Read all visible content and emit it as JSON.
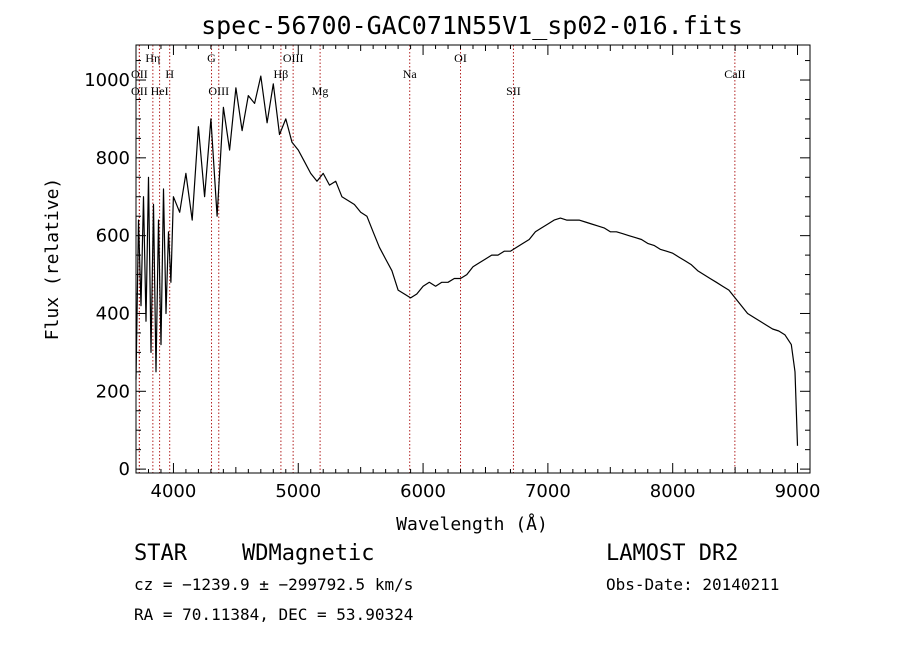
{
  "chart_data": {
    "type": "line",
    "title": "spec-56700-GAC071N55V1_sp02-016.fits",
    "xlabel": "Wavelength (Å)",
    "ylabel": "Flux (relative)",
    "xlim": [
      3700,
      9100
    ],
    "ylim": [
      -10,
      1090
    ],
    "x_ticks": [
      4000,
      5000,
      6000,
      7000,
      8000,
      9000
    ],
    "y_ticks": [
      0,
      200,
      400,
      600,
      800,
      1000
    ],
    "grid": false,
    "line_color": "#000000",
    "marker_color": "#b22222",
    "spectral_lines": [
      {
        "label": "OII",
        "wavelength": 3727,
        "tier": "upper"
      },
      {
        "label": "Hη",
        "wavelength": 3835,
        "tier": "top"
      },
      {
        "label": "OII",
        "wavelength": 3727,
        "tier": "mid"
      },
      {
        "label": "HeI",
        "wavelength": 3889,
        "tier": "mid"
      },
      {
        "label": "H",
        "wavelength": 3970,
        "tier": "upper"
      },
      {
        "label": "G",
        "wavelength": 4305,
        "tier": "top"
      },
      {
        "label": "OIII",
        "wavelength": 4363,
        "tier": "mid"
      },
      {
        "label": "Hβ",
        "wavelength": 4861,
        "tier": "upper"
      },
      {
        "label": "OIII",
        "wavelength": 4959,
        "tier": "top"
      },
      {
        "label": "Mg",
        "wavelength": 5175,
        "tier": "mid"
      },
      {
        "label": "Na",
        "wavelength": 5893,
        "tier": "upper"
      },
      {
        "label": "OI",
        "wavelength": 6300,
        "tier": "top"
      },
      {
        "label": "SII",
        "wavelength": 6724,
        "tier": "mid"
      },
      {
        "label": "CaII",
        "wavelength": 8498,
        "tier": "upper"
      }
    ],
    "series": [
      {
        "x": [
          3700,
          3720,
          3740,
          3760,
          3780,
          3800,
          3820,
          3840,
          3860,
          3880,
          3900,
          3920,
          3940,
          3960,
          3980,
          4000,
          4050,
          4100,
          4150,
          4200,
          4250,
          4300,
          4350,
          4400,
          4450,
          4500,
          4550,
          4600,
          4650,
          4700,
          4750,
          4800,
          4850,
          4900,
          4950,
          5000,
          5050,
          5100,
          5150,
          5200,
          5250,
          5300,
          5350,
          5400,
          5450,
          5500,
          5550,
          5600,
          5650,
          5700,
          5750,
          5800,
          5850,
          5900,
          5950,
          6000,
          6050,
          6100,
          6150,
          6200,
          6250,
          6300,
          6350,
          6400,
          6450,
          6500,
          6550,
          6600,
          6650,
          6700,
          6750,
          6800,
          6850,
          6900,
          6950,
          7000,
          7050,
          7100,
          7150,
          7200,
          7250,
          7300,
          7350,
          7400,
          7450,
          7500,
          7550,
          7600,
          7650,
          7700,
          7750,
          7800,
          7850,
          7900,
          7950,
          8000,
          8050,
          8100,
          8150,
          8200,
          8250,
          8300,
          8350,
          8400,
          8450,
          8500,
          8550,
          8600,
          8650,
          8700,
          8750,
          8800,
          8850,
          8900,
          8950,
          8980,
          9000
        ],
        "values": [
          230,
          640,
          420,
          700,
          380,
          750,
          300,
          680,
          250,
          640,
          320,
          720,
          400,
          610,
          480,
          700,
          660,
          760,
          640,
          880,
          700,
          900,
          650,
          930,
          820,
          980,
          870,
          960,
          940,
          1010,
          890,
          990,
          860,
          900,
          840,
          820,
          790,
          760,
          740,
          760,
          730,
          740,
          700,
          690,
          680,
          660,
          650,
          610,
          570,
          540,
          510,
          460,
          450,
          440,
          450,
          470,
          480,
          470,
          480,
          480,
          490,
          490,
          500,
          520,
          530,
          540,
          550,
          550,
          560,
          560,
          570,
          580,
          590,
          610,
          620,
          630,
          640,
          645,
          640,
          640,
          640,
          635,
          630,
          625,
          620,
          610,
          610,
          605,
          600,
          595,
          590,
          580,
          575,
          565,
          560,
          555,
          545,
          535,
          525,
          510,
          500,
          490,
          480,
          470,
          460,
          440,
          420,
          400,
          390,
          380,
          370,
          360,
          355,
          345,
          320,
          250,
          60
        ]
      }
    ]
  },
  "annotations": {
    "class_label": "STAR",
    "subclass_label": "WDMagnetic",
    "survey": "LAMOST DR2",
    "cz": "cz = −1239.9 ± −299792.5 km/s",
    "obs_date": "Obs-Date: 20140211",
    "coords": "RA =  70.11384, DEC =  53.90324"
  }
}
